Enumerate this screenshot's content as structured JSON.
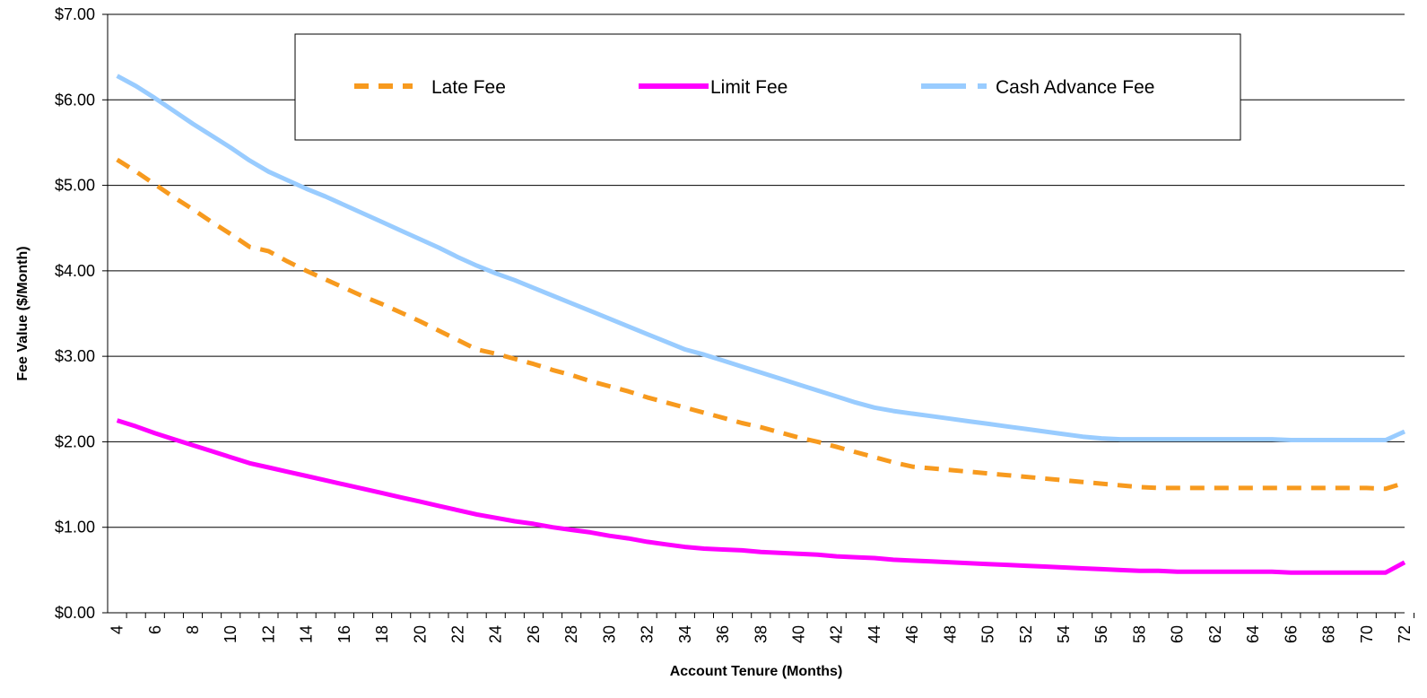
{
  "chart_data": {
    "type": "line",
    "title": "",
    "xlabel": "Account Tenure (Months)",
    "ylabel": "Fee Value ($/Month)",
    "x": [
      4,
      5,
      6,
      7,
      8,
      9,
      10,
      11,
      12,
      13,
      14,
      15,
      16,
      17,
      18,
      19,
      20,
      21,
      22,
      23,
      24,
      25,
      26,
      27,
      28,
      29,
      30,
      31,
      32,
      33,
      34,
      35,
      36,
      37,
      38,
      39,
      40,
      41,
      42,
      43,
      44,
      45,
      46,
      47,
      48,
      49,
      50,
      51,
      52,
      53,
      54,
      55,
      56,
      57,
      58,
      59,
      60,
      61,
      62,
      63,
      64,
      65,
      66,
      67,
      68,
      69,
      70,
      71,
      72
    ],
    "x_tick_labels": [
      "4",
      "6",
      "8",
      "10",
      "12",
      "14",
      "16",
      "18",
      "20",
      "22",
      "24",
      "26",
      "28",
      "30",
      "32",
      "34",
      "36",
      "38",
      "40",
      "42",
      "44",
      "46",
      "48",
      "50",
      "52",
      "54",
      "56",
      "58",
      "60",
      "62",
      "64",
      "66",
      "68",
      "70",
      "72"
    ],
    "ylim": [
      0,
      7
    ],
    "y_tick_values": [
      0,
      1,
      2,
      3,
      4,
      5,
      6,
      7
    ],
    "y_tick_labels": [
      "$0.00",
      "$1.00",
      "$2.00",
      "$3.00",
      "$4.00",
      "$5.00",
      "$6.00",
      "$7.00"
    ],
    "grid": "horizontal",
    "legend_position": "top-center",
    "series": [
      {
        "name": "Late Fee",
        "color": "#F79A1E",
        "style": "dashed",
        "values": [
          5.3,
          5.16,
          5.01,
          4.86,
          4.72,
          4.57,
          4.43,
          4.28,
          4.23,
          4.11,
          4.0,
          3.9,
          3.8,
          3.7,
          3.61,
          3.51,
          3.41,
          3.3,
          3.19,
          3.08,
          3.03,
          2.97,
          2.91,
          2.84,
          2.78,
          2.71,
          2.65,
          2.59,
          2.52,
          2.46,
          2.4,
          2.34,
          2.28,
          2.22,
          2.17,
          2.11,
          2.05,
          2.0,
          1.94,
          1.88,
          1.82,
          1.76,
          1.71,
          1.69,
          1.67,
          1.65,
          1.63,
          1.61,
          1.59,
          1.57,
          1.55,
          1.53,
          1.51,
          1.49,
          1.47,
          1.46,
          1.46,
          1.46,
          1.46,
          1.46,
          1.46,
          1.46,
          1.46,
          1.46,
          1.46,
          1.46,
          1.46,
          1.45,
          1.52
        ]
      },
      {
        "name": "Limit Fee",
        "color": "#FF00FF",
        "style": "solid",
        "values": [
          2.25,
          2.18,
          2.1,
          2.03,
          1.96,
          1.89,
          1.82,
          1.75,
          1.7,
          1.65,
          1.6,
          1.55,
          1.5,
          1.45,
          1.4,
          1.35,
          1.3,
          1.25,
          1.2,
          1.15,
          1.11,
          1.07,
          1.04,
          1.0,
          0.97,
          0.94,
          0.9,
          0.87,
          0.83,
          0.8,
          0.77,
          0.75,
          0.74,
          0.73,
          0.71,
          0.7,
          0.69,
          0.68,
          0.66,
          0.65,
          0.64,
          0.62,
          0.61,
          0.6,
          0.59,
          0.58,
          0.57,
          0.56,
          0.55,
          0.54,
          0.53,
          0.52,
          0.51,
          0.5,
          0.49,
          0.49,
          0.48,
          0.48,
          0.48,
          0.48,
          0.48,
          0.48,
          0.47,
          0.47,
          0.47,
          0.47,
          0.47,
          0.47,
          0.59
        ]
      },
      {
        "name": "Cash Advance Fee",
        "color": "#99CCFF",
        "style": "solid",
        "values": [
          6.28,
          6.16,
          6.02,
          5.87,
          5.72,
          5.58,
          5.44,
          5.29,
          5.16,
          5.06,
          4.96,
          4.87,
          4.77,
          4.67,
          4.57,
          4.47,
          4.37,
          4.27,
          4.16,
          4.06,
          3.97,
          3.89,
          3.8,
          3.71,
          3.62,
          3.53,
          3.44,
          3.35,
          3.26,
          3.17,
          3.08,
          3.02,
          2.95,
          2.88,
          2.81,
          2.74,
          2.67,
          2.6,
          2.53,
          2.46,
          2.4,
          2.36,
          2.33,
          2.3,
          2.27,
          2.24,
          2.21,
          2.18,
          2.15,
          2.12,
          2.09,
          2.06,
          2.04,
          2.03,
          2.03,
          2.03,
          2.03,
          2.03,
          2.03,
          2.03,
          2.03,
          2.03,
          2.02,
          2.02,
          2.02,
          2.02,
          2.02,
          2.02,
          2.12
        ]
      }
    ]
  }
}
